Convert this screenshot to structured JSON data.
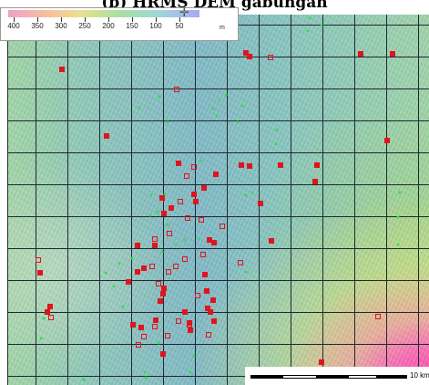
{
  "title": "(b) HRMS DEM gabungan",
  "legend": {
    "ticks": [
      "400",
      "350",
      "300",
      "250",
      "200",
      "150",
      "100",
      "50"
    ],
    "unit": "m",
    "marker_icon": "crosshair-icon"
  },
  "scale_bar": {
    "label": "10 km"
  },
  "colors": {
    "grid": "#1e2a32",
    "site_marker": "#e0141e",
    "green_marker": "#2ee04a",
    "pink_high": "#ff3fa8",
    "yellow": "#f0e070",
    "base": "#86c0c0"
  }
}
